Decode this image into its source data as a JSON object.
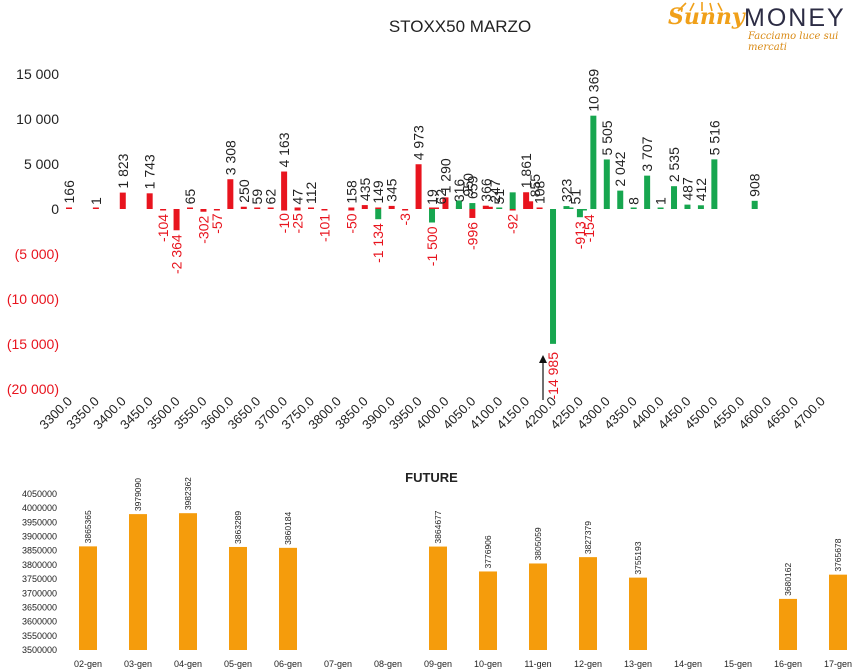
{
  "top_title": "STOXX50 MARZO",
  "logo": {
    "word1": "Sunny",
    "word2": "MONEY",
    "tagline": "Facciamo luce sui mercati"
  },
  "colors": {
    "put": "#e8141e",
    "call": "#17a64f",
    "future": "#f59c0c",
    "negative_label": "#e8141e"
  },
  "chart_data": [
    {
      "type": "bar",
      "title": "STOXX50 MARZO",
      "ylim": [
        -20000,
        15000
      ],
      "yticks": [
        {
          "v": 15000,
          "t": "15 000"
        },
        {
          "v": 10000,
          "t": "10 000"
        },
        {
          "v": 5000,
          "t": "5 000"
        },
        {
          "v": 0,
          "t": "0"
        },
        {
          "v": -5000,
          "t": "(5 000)"
        },
        {
          "v": -10000,
          "t": "(10 000)"
        },
        {
          "v": -15000,
          "t": "(15 000)"
        },
        {
          "v": -20000,
          "t": "(20 000)"
        }
      ],
      "x_categories": [
        "3300.0",
        "3350.0",
        "3400.0",
        "3450.0",
        "3500.0",
        "3550.0",
        "3600.0",
        "3650.0",
        "3700.0",
        "3750.0",
        "3800.0",
        "3850.0",
        "3900.0",
        "3950.0",
        "4000.0",
        "4050.0",
        "4100.0",
        "4150.0",
        "4200.0",
        "4250.0",
        "4300.0",
        "4350.0",
        "4400.0",
        "4450.0",
        "4500.0",
        "4550.0",
        "4600.0",
        "4650.0",
        "4700.0"
      ],
      "series": [
        {
          "values": [
            [
              3300,
              166
            ],
            [
              3350,
              1
            ],
            [
              3400,
              1823
            ],
            [
              3450,
              1743
            ],
            [
              3475,
              -104
            ],
            [
              3500,
              -2364
            ],
            [
              3525,
              65
            ],
            [
              3550,
              -302
            ],
            [
              3575,
              -57
            ],
            [
              3600,
              3308
            ],
            [
              3625,
              250
            ],
            [
              3650,
              59
            ],
            [
              3675,
              62
            ],
            [
              3700,
              4163
            ],
            [
              3700,
              -10
            ],
            [
              3725,
              47
            ],
            [
              3725,
              -25
            ],
            [
              3750,
              112
            ],
            [
              3775,
              -101
            ],
            [
              3825,
              158
            ],
            [
              3825,
              -50
            ],
            [
              3850,
              435
            ],
            [
              3875,
              149
            ],
            [
              3900,
              345
            ],
            [
              3925,
              -3
            ],
            [
              3950,
              4973
            ],
            [
              3975,
              19
            ],
            [
              3975,
              62
            ],
            [
              4000,
              1290
            ],
            [
              4025,
              316
            ],
            [
              4050,
              -996
            ],
            [
              4075,
              366
            ],
            [
              4075,
              247
            ],
            [
              4125,
              -92
            ],
            [
              4150,
              1861
            ],
            [
              4150,
              855
            ],
            [
              4175,
              108
            ]
          ]
        },
        {
          "values": [
            [
              3875,
              -1134
            ],
            [
              3975,
              -1500
            ],
            [
              4025,
              950
            ],
            [
              4050,
              659
            ],
            [
              4100,
              51
            ],
            [
              4125,
              1851
            ],
            [
              4200,
              -14985
            ],
            [
              4225,
              323
            ],
            [
              4225,
              51
            ],
            [
              4250,
              -913
            ],
            [
              4250,
              -154
            ],
            [
              4275,
              10369
            ],
            [
              4300,
              5505
            ],
            [
              4325,
              2042
            ],
            [
              4350,
              8
            ],
            [
              4375,
              3707
            ],
            [
              4400,
              1
            ],
            [
              4425,
              2535
            ],
            [
              4450,
              487
            ],
            [
              4475,
              412
            ],
            [
              4500,
              5516
            ],
            [
              4575,
              908
            ]
          ]
        }
      ],
      "labels": [
        {
          "x": 3300,
          "t": "166"
        },
        {
          "x": 3350,
          "t": "1"
        },
        {
          "x": 3400,
          "t": "1 823"
        },
        {
          "x": 3450,
          "t": "1 743"
        },
        {
          "x": 3475,
          "t": "-104"
        },
        {
          "x": 3500,
          "t": "-2 364"
        },
        {
          "x": 3525,
          "t": "65"
        },
        {
          "x": 3550,
          "t": "-302"
        },
        {
          "x": 3575,
          "t": "-57"
        },
        {
          "x": 3600,
          "t": "3 308"
        },
        {
          "x": 3625,
          "t": "250"
        },
        {
          "x": 3650,
          "t": "59"
        },
        {
          "x": 3675,
          "t": "62"
        },
        {
          "x": 3700,
          "t": "4 163"
        },
        {
          "x": 3700,
          "t": "-10"
        },
        {
          "x": 3725,
          "t": "47"
        },
        {
          "x": 3725,
          "t": "-25"
        },
        {
          "x": 3750,
          "t": "112"
        },
        {
          "x": 3775,
          "t": "-101"
        },
        {
          "x": 3825,
          "t": "158"
        },
        {
          "x": 3825,
          "t": "-50"
        },
        {
          "x": 3850,
          "t": "435"
        },
        {
          "x": 3875,
          "t": "149"
        },
        {
          "x": 3875,
          "t": "-1 134"
        },
        {
          "x": 3900,
          "t": "345"
        },
        {
          "x": 3925,
          "t": "-3"
        },
        {
          "x": 3950,
          "t": "4 973"
        },
        {
          "x": 3975,
          "t": "19"
        },
        {
          "x": 3975,
          "t": "62"
        },
        {
          "x": 3975,
          "t": "-1 500"
        },
        {
          "x": 4000,
          "t": "1 290"
        },
        {
          "x": 4025,
          "t": "316"
        },
        {
          "x": 4025,
          "t": "950"
        },
        {
          "x": 4050,
          "t": "659"
        },
        {
          "x": 4050,
          "t": "-996"
        },
        {
          "x": 4075,
          "t": "366"
        },
        {
          "x": 4075,
          "t": "247"
        },
        {
          "x": 4100,
          "t": "51"
        },
        {
          "x": 4125,
          "t": "-92"
        },
        {
          "x": 4150,
          "t": "1 861"
        },
        {
          "x": 4150,
          "t": "855"
        },
        {
          "x": 4175,
          "t": "108"
        },
        {
          "x": 4200,
          "t": "-14 985"
        },
        {
          "x": 4225,
          "t": "323"
        },
        {
          "x": 4225,
          "t": "51"
        },
        {
          "x": 4250,
          "t": "-913"
        },
        {
          "x": 4250,
          "t": "-154"
        },
        {
          "x": 4275,
          "t": "10 369"
        },
        {
          "x": 4300,
          "t": "5 505"
        },
        {
          "x": 4325,
          "t": "2 042"
        },
        {
          "x": 4350,
          "t": "8"
        },
        {
          "x": 4375,
          "t": "3 707"
        },
        {
          "x": 4400,
          "t": "1"
        },
        {
          "x": 4425,
          "t": "2 535"
        },
        {
          "x": 4450,
          "t": "487"
        },
        {
          "x": 4475,
          "t": "412"
        },
        {
          "x": 4500,
          "t": "5 516"
        },
        {
          "x": 4575,
          "t": "908"
        }
      ],
      "grid": false,
      "legend": "none"
    },
    {
      "type": "bar",
      "title": "FUTURE",
      "categories": [
        "02-gen",
        "03-gen",
        "04-gen",
        "05-gen",
        "06-gen",
        "07-gen",
        "08-gen",
        "09-gen",
        "10-gen",
        "11-gen",
        "12-gen",
        "13-gen",
        "14-gen",
        "15-gen",
        "16-gen",
        "17-gen"
      ],
      "values": [
        3865365,
        3979090,
        3982362,
        3863289,
        3860184,
        null,
        null,
        3864677,
        3776906,
        3805059,
        3827379,
        3755193,
        null,
        null,
        3680162,
        3765678
      ],
      "ylim": [
        3500000,
        4050000
      ],
      "yticks": [
        "4050000",
        "4000000",
        "3950000",
        "3900000",
        "3850000",
        "3800000",
        "3750000",
        "3700000",
        "3650000",
        "3600000",
        "3550000",
        "3500000"
      ],
      "grid": false,
      "legend": "none"
    }
  ]
}
